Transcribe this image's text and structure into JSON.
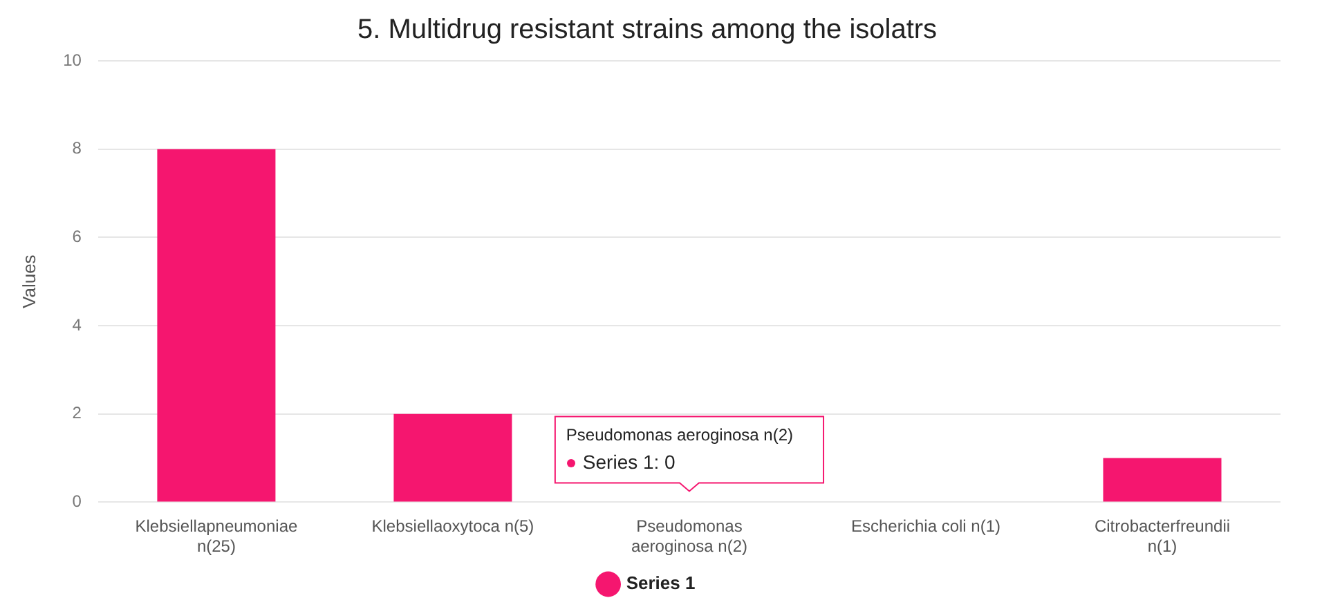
{
  "chart_data": {
    "type": "bar",
    "title": "5. Multidrug resistant strains among the isolatrs",
    "ylabel": "Values",
    "categories": [
      "Klebsiellapneumoniae n(25)",
      "Klebsiellaoxytoca n(5)",
      "Pseudomonas aeroginosa n(2)",
      "Escherichia coli n(1)",
      "Citrobacterfreundii n(1)"
    ],
    "series": [
      {
        "name": "Series 1",
        "color": "#f5166f",
        "values": [
          8,
          2,
          0,
          0,
          1
        ]
      }
    ],
    "ylim": [
      0,
      10
    ],
    "yticks": [
      0,
      2,
      4,
      6,
      8,
      10
    ],
    "grid": "y",
    "legend": "bottom",
    "annotations": [
      {
        "text": "Pseudomonas aeroginosa n(2)\nSeries 1: 0",
        "x": "Pseudomonas aeroginosa n(2)",
        "y": 0
      }
    ]
  }
}
